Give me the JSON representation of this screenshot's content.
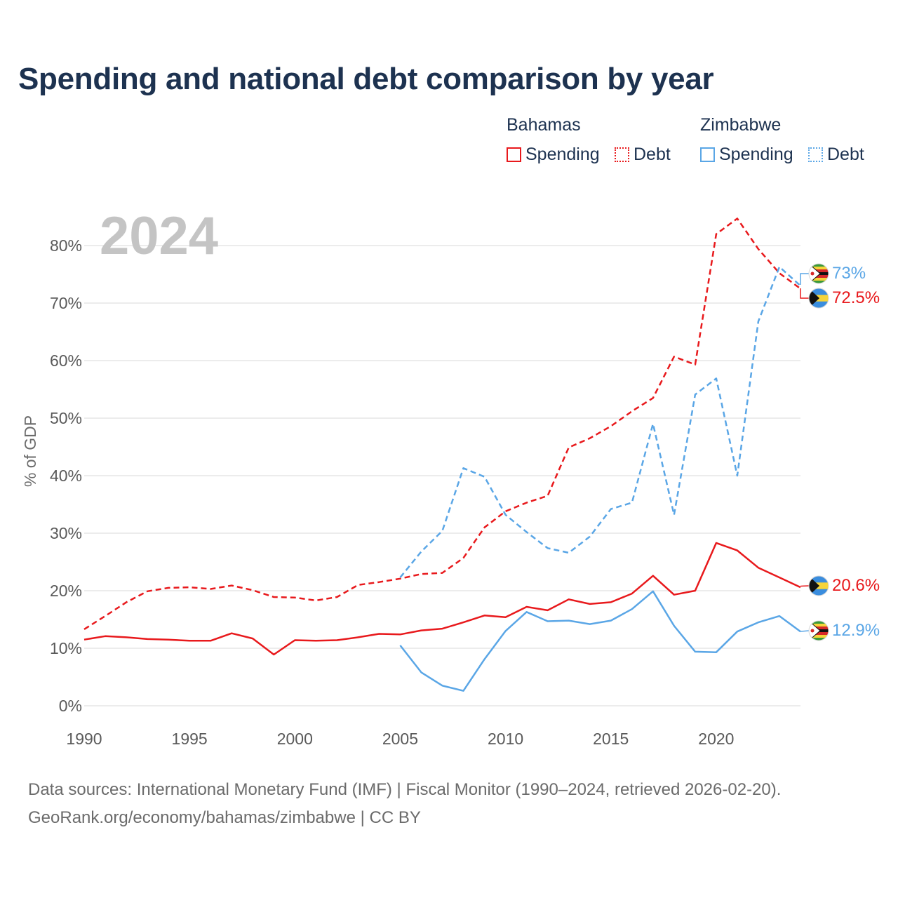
{
  "title": "Spending and national debt comparison by year",
  "legend": {
    "groups": [
      {
        "name": "Bahamas",
        "color": "#e8191c",
        "items": [
          "Spending",
          "Debt"
        ]
      },
      {
        "name": "Zimbabwe",
        "color": "#5aa6e6",
        "items": [
          "Spending",
          "Debt"
        ]
      }
    ]
  },
  "footer": {
    "line1": "Data sources: International Monetary Fund (IMF) | Fiscal Monitor (1990–2024, retrieved 2026-02-20).",
    "line2": "GeoRank.org/economy/bahamas/zimbabwe | CC BY"
  },
  "chart_data": {
    "type": "line",
    "year_label": "2024",
    "ylabel": "% of GDP",
    "xlim": [
      1990,
      2024
    ],
    "ylim": [
      0,
      85
    ],
    "x_ticks": [
      "1990",
      "1995",
      "2000",
      "2005",
      "2010",
      "2015",
      "2020"
    ],
    "y_ticks": [
      {
        "value": 0,
        "label": "0%"
      },
      {
        "value": 10,
        "label": "10%"
      },
      {
        "value": 20,
        "label": "20%"
      },
      {
        "value": 30,
        "label": "30%"
      },
      {
        "value": 40,
        "label": "40%"
      },
      {
        "value": 50,
        "label": "50%"
      },
      {
        "value": 60,
        "label": "60%"
      },
      {
        "value": 70,
        "label": "70%"
      },
      {
        "value": 80,
        "label": "80%"
      }
    ],
    "series": [
      {
        "name": "Bahamas Spending",
        "country": "Bahamas",
        "metric": "Spending",
        "color": "#e8191c",
        "dashed": false,
        "start_year": 1990,
        "values": [
          11.5,
          12.1,
          11.9,
          11.6,
          11.5,
          11.3,
          11.3,
          12.6,
          11.7,
          8.9,
          11.4,
          11.3,
          11.4,
          11.9,
          12.5,
          12.4,
          13.1,
          13.4,
          14.5,
          15.7,
          15.4,
          17.2,
          16.6,
          18.5,
          17.7,
          18.0,
          19.5,
          22.6,
          19.3,
          20.0,
          28.3,
          27.0,
          24.0,
          22.3,
          20.6
        ],
        "end_label": "20.6%"
      },
      {
        "name": "Bahamas Debt",
        "country": "Bahamas",
        "metric": "Debt",
        "color": "#e8191c",
        "dashed": true,
        "start_year": 1990,
        "values": [
          13.3,
          15.6,
          18.0,
          19.9,
          20.5,
          20.6,
          20.3,
          20.9,
          20.1,
          18.9,
          18.8,
          18.3,
          18.9,
          21.0,
          21.5,
          22.1,
          22.9,
          23.1,
          25.7,
          31.0,
          33.8,
          35.3,
          36.5,
          44.9,
          46.5,
          48.6,
          51.2,
          53.5,
          60.7,
          59.3,
          82.0,
          84.7,
          79.4,
          75.2,
          72.5
        ],
        "end_label": "72.5%"
      },
      {
        "name": "Zimbabwe Spending",
        "country": "Zimbabwe",
        "metric": "Spending",
        "color": "#5aa6e6",
        "dashed": false,
        "start_year": 2005,
        "values": [
          10.5,
          5.8,
          3.5,
          2.6,
          8.1,
          13.0,
          16.3,
          14.7,
          14.8,
          14.2,
          14.8,
          16.8,
          19.9,
          13.9,
          9.4,
          9.3,
          12.9,
          14.5,
          15.6,
          12.9
        ],
        "end_label": "12.9%"
      },
      {
        "name": "Zimbabwe Debt",
        "country": "Zimbabwe",
        "metric": "Debt",
        "color": "#5aa6e6",
        "dashed": true,
        "start_year": 2005,
        "values": [
          22.3,
          26.8,
          30.4,
          41.3,
          39.8,
          33.2,
          30.2,
          27.4,
          26.6,
          29.4,
          34.2,
          35.3,
          49.0,
          33.2,
          54.1,
          56.9,
          40.0,
          66.8,
          76.3,
          73.0
        ],
        "end_label": "73%"
      }
    ]
  }
}
